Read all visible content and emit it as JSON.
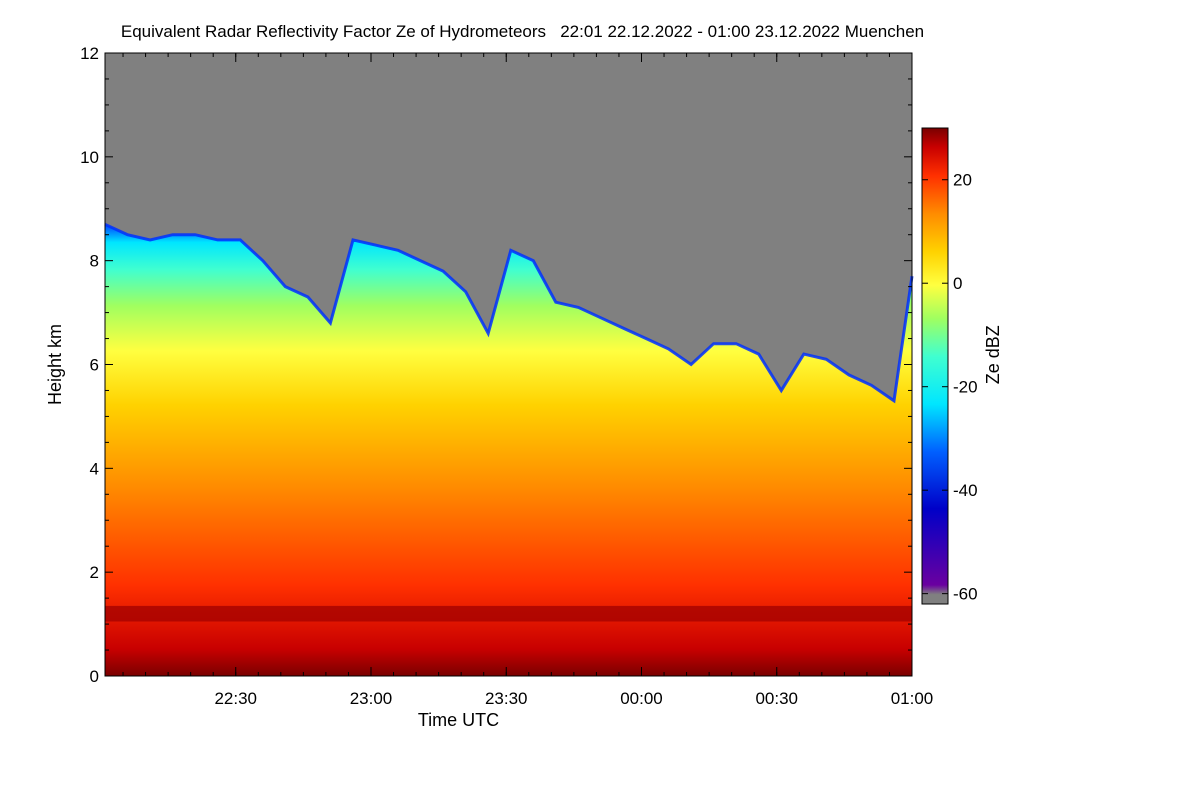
{
  "chart_data": {
    "type": "heatmap",
    "title": "Equivalent Radar Reflectivity Factor Ze of Hydrometeors   22:01 22.12.2022 - 01:00 23.12.2022 Muenchen",
    "xlabel": "Time UTC",
    "ylabel": "Height km",
    "x_start": "22:01",
    "x_end": "01:00",
    "x_ticks": [
      {
        "label": "22:30",
        "minutes_after_start": 29
      },
      {
        "label": "23:00",
        "minutes_after_start": 59
      },
      {
        "label": "23:30",
        "minutes_after_start": 89
      },
      {
        "label": "00:00",
        "minutes_after_start": 119
      },
      {
        "label": "00:30",
        "minutes_after_start": 149
      },
      {
        "label": "01:00",
        "minutes_after_start": 179
      }
    ],
    "ylim": [
      0,
      12
    ],
    "y_ticks": [
      0,
      2,
      4,
      6,
      8,
      10,
      12
    ],
    "colorbar": {
      "label": "Ze dBZ",
      "range": [
        -62,
        30
      ],
      "ticks": [
        -60,
        -40,
        -20,
        0,
        20
      ]
    },
    "cloud_top_km": {
      "time_minutes": [
        0,
        5,
        10,
        15,
        20,
        25,
        30,
        35,
        40,
        45,
        50,
        55,
        60,
        65,
        70,
        75,
        80,
        85,
        90,
        95,
        100,
        105,
        110,
        115,
        120,
        125,
        130,
        135,
        140,
        145,
        150,
        155,
        160,
        165,
        170,
        175,
        179
      ],
      "height_km": [
        8.7,
        8.5,
        8.4,
        8.5,
        8.5,
        8.4,
        8.4,
        8.0,
        7.5,
        7.3,
        6.8,
        8.4,
        8.3,
        8.2,
        8.0,
        7.8,
        7.4,
        6.6,
        8.2,
        8.0,
        7.2,
        7.1,
        6.9,
        6.7,
        6.5,
        6.3,
        6.0,
        6.4,
        6.4,
        6.2,
        5.5,
        6.2,
        6.1,
        5.8,
        5.6,
        5.3,
        7.7
      ]
    },
    "bright_band_km": 1.2,
    "background_color": "#808080",
    "colors": [
      "#7a0000",
      "#c80000",
      "#ff3000",
      "#ff8c00",
      "#ffd200",
      "#ffff40",
      "#a0ff60",
      "#40ffd0",
      "#00e6ff",
      "#0060ff",
      "#0000c8",
      "#808080"
    ]
  }
}
